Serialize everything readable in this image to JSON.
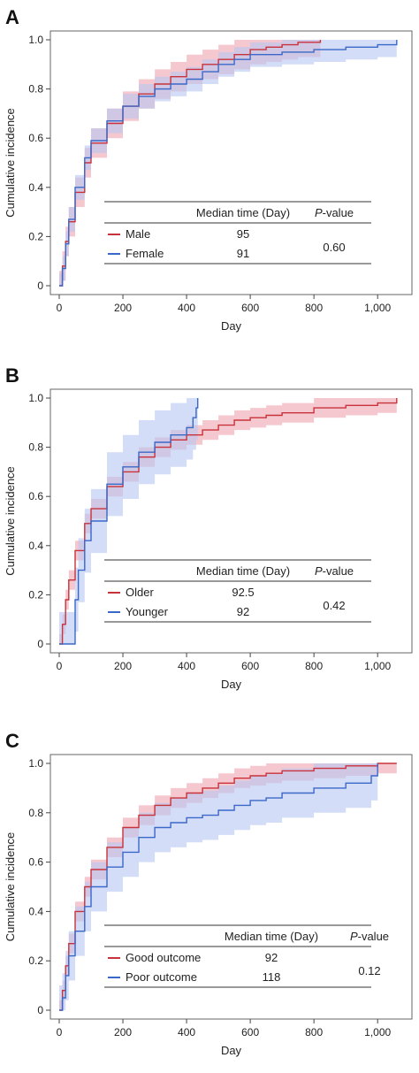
{
  "colors": {
    "red": "#c8323a",
    "blue": "#3a68c8",
    "red_band": "#f2b6bf",
    "blue_band": "#b7c6f2"
  },
  "chart_data": [
    {
      "panel_label": "A",
      "type": "line",
      "xlabel": "Day",
      "ylabel": "Cumulative incidence",
      "xlim": [
        0,
        1080
      ],
      "ylim": [
        0,
        1.0
      ],
      "xticks": [
        0,
        200,
        400,
        600,
        800,
        1000
      ],
      "xtick_labels": [
        "0",
        "200",
        "400",
        "600",
        "800",
        "1,000"
      ],
      "yticks": [
        0,
        0.2,
        0.4,
        0.6,
        0.8,
        1.0
      ],
      "ytick_labels": [
        "0",
        "0.2",
        "0.4",
        "0.6",
        "0.8",
        "1.0"
      ],
      "table": {
        "header_median": "Median time (Day)",
        "header_p_prefix": "P",
        "header_p_suffix": "-value",
        "p_value": "0.60",
        "rows": [
          {
            "label": "Male",
            "median": "95",
            "color": "#c8323a"
          },
          {
            "label": "Female",
            "median": "91",
            "color": "#3a68c8"
          }
        ]
      },
      "series": [
        {
          "name": "Male",
          "color": "#c8323a",
          "x": [
            0,
            10,
            20,
            30,
            50,
            80,
            100,
            150,
            200,
            250,
            300,
            350,
            400,
            450,
            500,
            550,
            600,
            650,
            700,
            750,
            820
          ],
          "y": [
            0,
            0.08,
            0.18,
            0.26,
            0.38,
            0.5,
            0.58,
            0.66,
            0.73,
            0.78,
            0.82,
            0.85,
            0.88,
            0.9,
            0.92,
            0.94,
            0.96,
            0.97,
            0.98,
            0.99,
            1.0
          ],
          "band": 0.06
        },
        {
          "name": "Female",
          "color": "#3a68c8",
          "x": [
            0,
            10,
            20,
            30,
            50,
            80,
            100,
            150,
            200,
            250,
            300,
            350,
            400,
            450,
            500,
            550,
            600,
            700,
            800,
            900,
            1000,
            1060
          ],
          "y": [
            0,
            0.07,
            0.17,
            0.27,
            0.4,
            0.52,
            0.59,
            0.67,
            0.73,
            0.77,
            0.8,
            0.82,
            0.84,
            0.87,
            0.9,
            0.92,
            0.94,
            0.95,
            0.96,
            0.97,
            0.98,
            1.0
          ],
          "band": 0.05
        }
      ]
    },
    {
      "panel_label": "B",
      "type": "line",
      "xlabel": "Day",
      "ylabel": "Cumulative incidence",
      "xlim": [
        0,
        1080
      ],
      "ylim": [
        0,
        1.0
      ],
      "xticks": [
        0,
        200,
        400,
        600,
        800,
        1000
      ],
      "xtick_labels": [
        "0",
        "200",
        "400",
        "600",
        "800",
        "1,000"
      ],
      "yticks": [
        0,
        0.2,
        0.4,
        0.6,
        0.8,
        1.0
      ],
      "ytick_labels": [
        "0",
        "0.2",
        "0.4",
        "0.6",
        "0.8",
        "1.0"
      ],
      "table": {
        "header_median": "Median time (Day)",
        "header_p_prefix": "P",
        "header_p_suffix": "-value",
        "p_value": "0.42",
        "rows": [
          {
            "label": "Older",
            "median": "92.5",
            "color": "#c8323a"
          },
          {
            "label": "Younger",
            "median": "92",
            "color": "#3a68c8"
          }
        ]
      },
      "series": [
        {
          "name": "Older",
          "color": "#c8323a",
          "x": [
            0,
            10,
            20,
            30,
            50,
            80,
            100,
            150,
            200,
            250,
            300,
            350,
            400,
            450,
            500,
            550,
            600,
            650,
            700,
            800,
            900,
            1000,
            1060
          ],
          "y": [
            0,
            0.08,
            0.18,
            0.26,
            0.38,
            0.49,
            0.55,
            0.64,
            0.7,
            0.76,
            0.8,
            0.83,
            0.85,
            0.87,
            0.89,
            0.91,
            0.92,
            0.93,
            0.94,
            0.96,
            0.97,
            0.98,
            1.0
          ],
          "band": 0.04
        },
        {
          "name": "Younger",
          "color": "#3a68c8",
          "x": [
            0,
            30,
            50,
            60,
            80,
            100,
            150,
            200,
            250,
            300,
            350,
            400,
            420,
            430,
            435
          ],
          "y": [
            0,
            0.0,
            0.18,
            0.3,
            0.42,
            0.5,
            0.65,
            0.72,
            0.78,
            0.82,
            0.85,
            0.88,
            0.92,
            0.96,
            1.0
          ],
          "band": 0.13
        }
      ]
    },
    {
      "panel_label": "C",
      "type": "line",
      "xlabel": "Day",
      "ylabel": "Cumulative incidence",
      "xlim": [
        0,
        1080
      ],
      "ylim": [
        0,
        1.0
      ],
      "xticks": [
        0,
        200,
        400,
        600,
        800,
        1000
      ],
      "xtick_labels": [
        "0",
        "200",
        "400",
        "600",
        "800",
        "1,000"
      ],
      "yticks": [
        0,
        0.2,
        0.4,
        0.6,
        0.8,
        1.0
      ],
      "ytick_labels": [
        "0",
        "0.2",
        "0.4",
        "0.6",
        "0.8",
        "1.0"
      ],
      "table": {
        "header_median": "Median time (Day)",
        "header_p_prefix": "P",
        "header_p_suffix": "-value",
        "p_value": "0.12",
        "rows": [
          {
            "label": "Good outcome",
            "median": "92",
            "color": "#c8323a"
          },
          {
            "label": "Poor outcome",
            "median": "118",
            "color": "#3a68c8"
          }
        ]
      },
      "series": [
        {
          "name": "Good outcome",
          "color": "#c8323a",
          "x": [
            0,
            10,
            20,
            30,
            50,
            80,
            100,
            150,
            200,
            250,
            300,
            350,
            400,
            450,
            500,
            550,
            600,
            650,
            700,
            800,
            900,
            1000,
            1060
          ],
          "y": [
            0,
            0.08,
            0.18,
            0.27,
            0.4,
            0.5,
            0.57,
            0.66,
            0.74,
            0.79,
            0.83,
            0.86,
            0.88,
            0.9,
            0.92,
            0.94,
            0.95,
            0.96,
            0.97,
            0.98,
            0.99,
            1.0,
            1.0
          ],
          "band": 0.04
        },
        {
          "name": "Poor outcome",
          "color": "#3a68c8",
          "x": [
            0,
            10,
            20,
            30,
            50,
            80,
            100,
            150,
            200,
            250,
            300,
            350,
            400,
            450,
            500,
            550,
            600,
            650,
            700,
            800,
            900,
            980,
            1000
          ],
          "y": [
            0,
            0.05,
            0.14,
            0.22,
            0.32,
            0.42,
            0.5,
            0.58,
            0.64,
            0.7,
            0.74,
            0.76,
            0.78,
            0.79,
            0.81,
            0.83,
            0.85,
            0.86,
            0.88,
            0.9,
            0.92,
            0.95,
            1.0
          ],
          "band": 0.1
        }
      ]
    }
  ]
}
